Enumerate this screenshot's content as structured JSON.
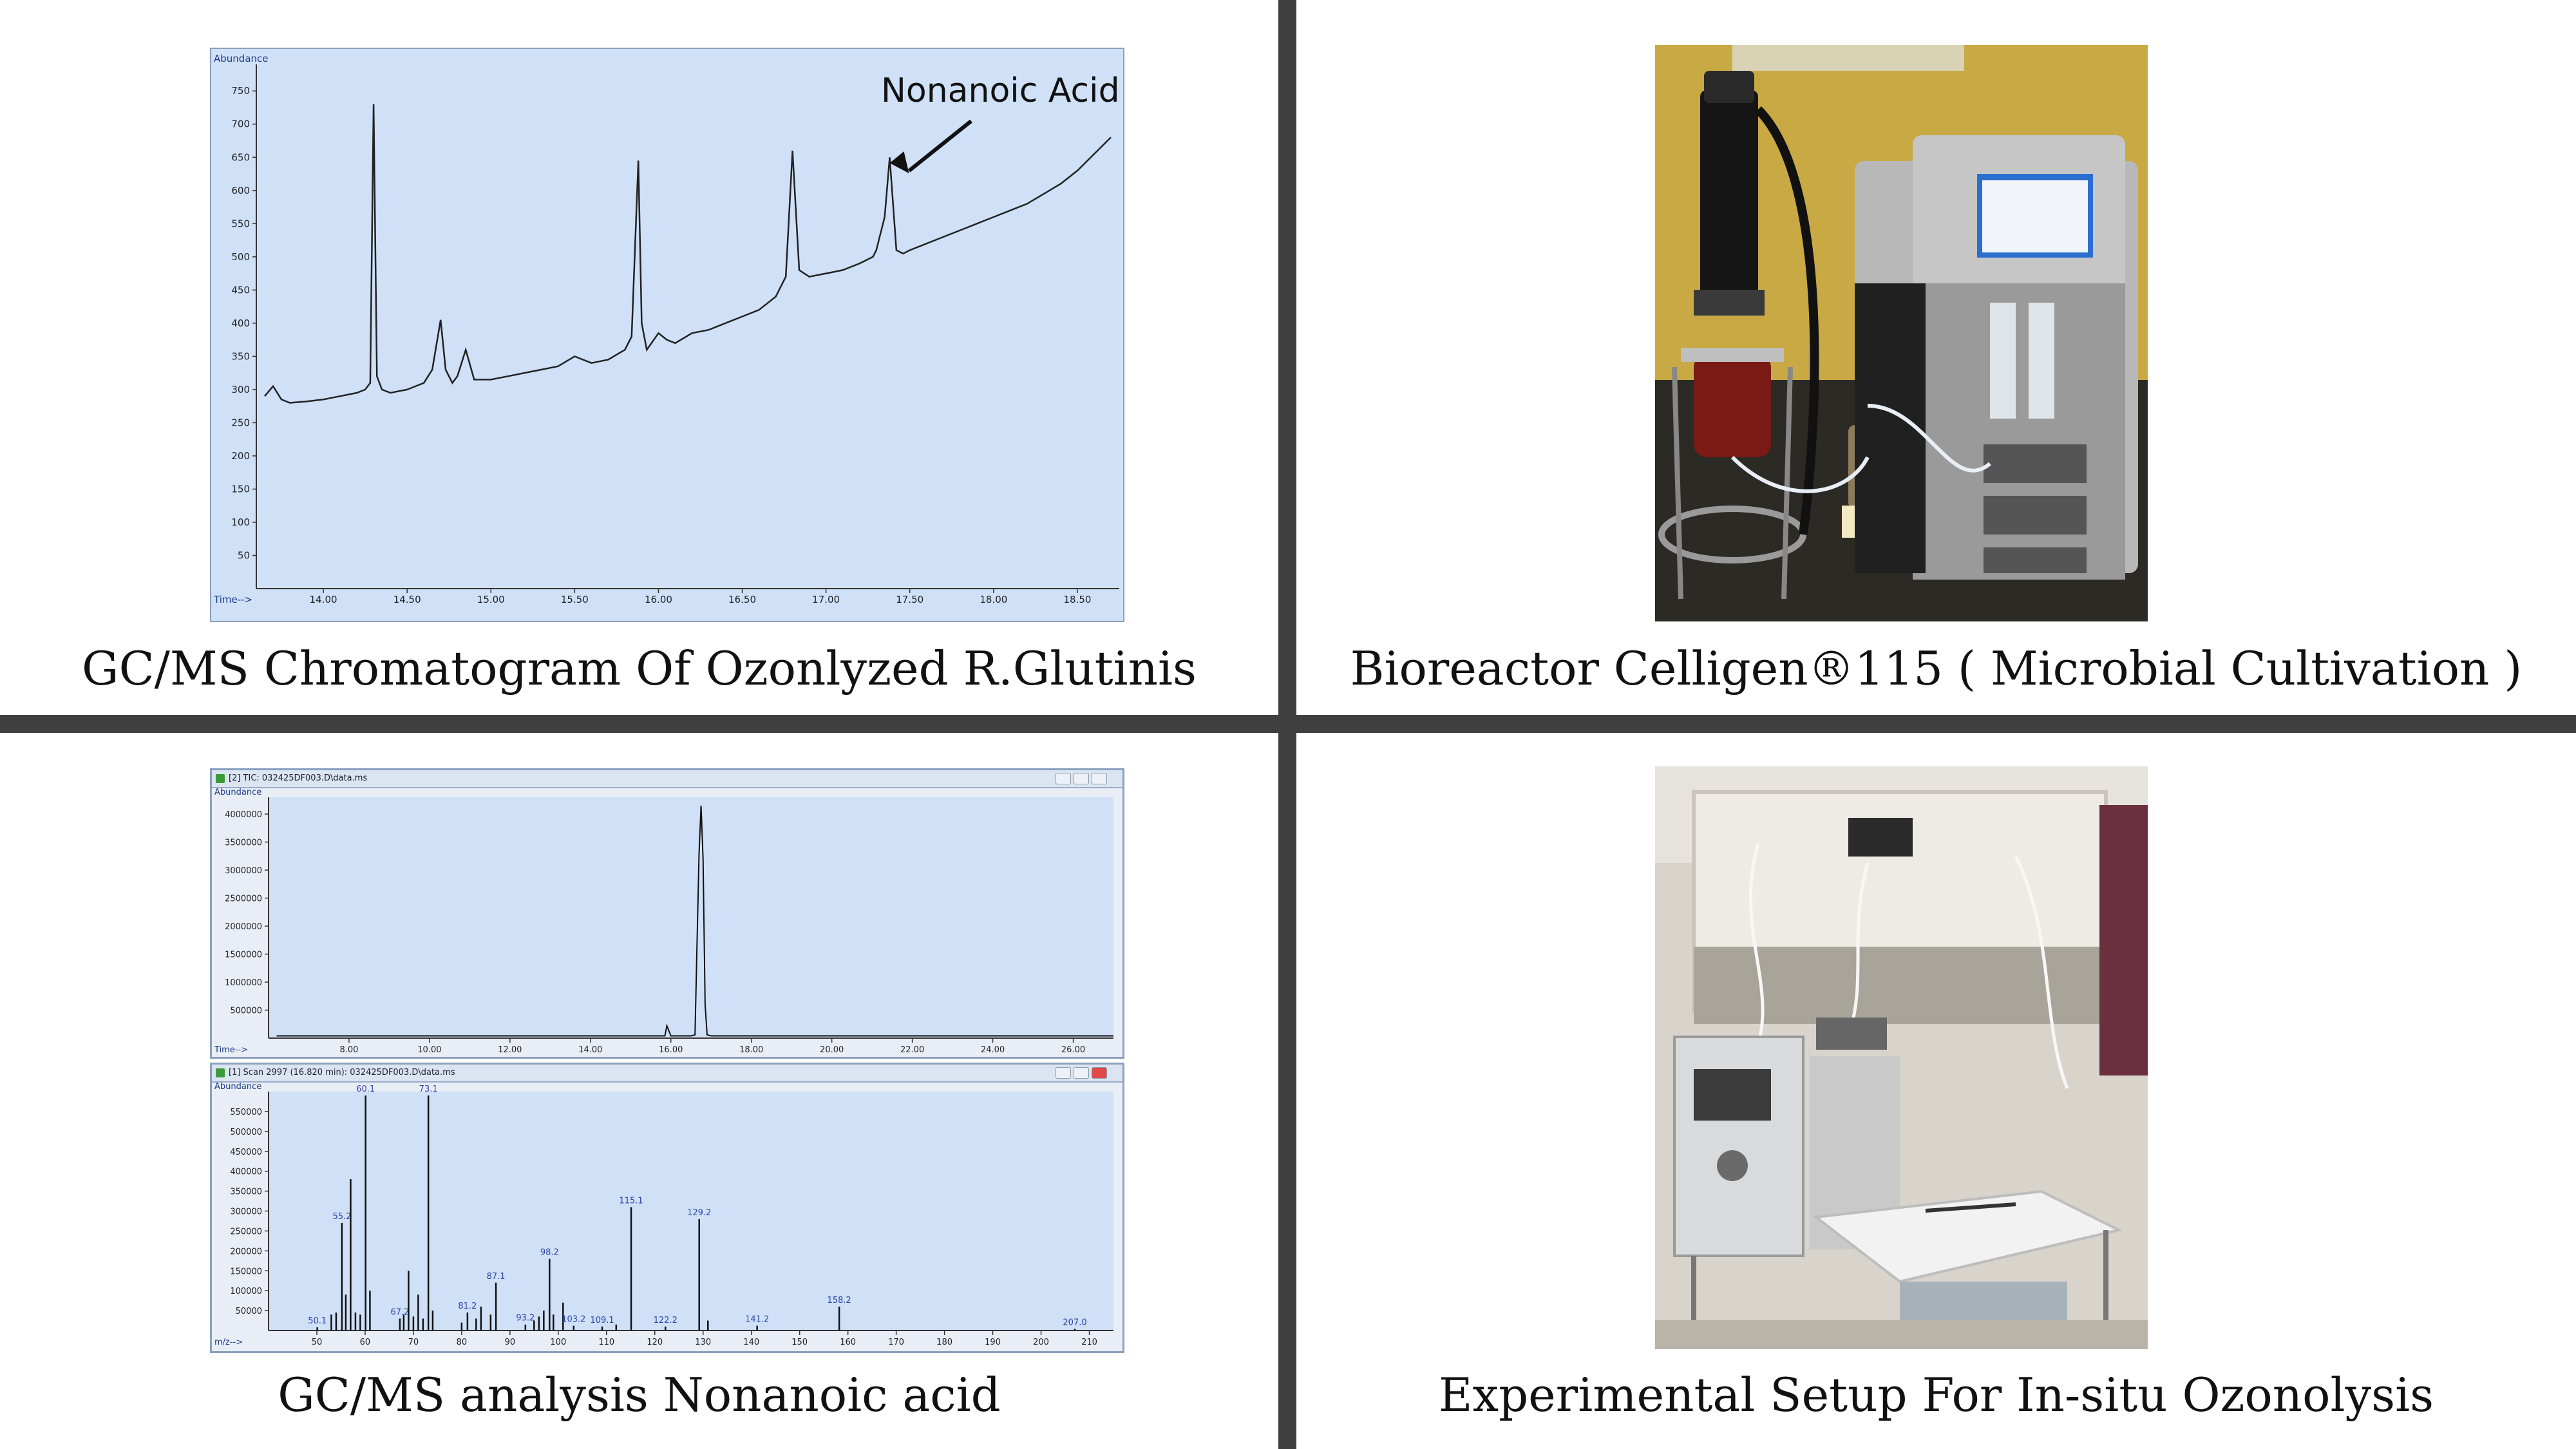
{
  "captions": {
    "top_left": "GC/MS Chromatogram Of Ozonlyzed R.Glutinis",
    "top_right": "Bioreactor Celligen®115 ( Microbial Cultivation )",
    "bottom_left": "GC/MS analysis Nonanoic acid",
    "bottom_right": "Experimental Setup For In-situ Ozonolysis"
  },
  "colors": {
    "plot_bg": "#cfe0f7",
    "trace": "#222222",
    "label_blue": "#2b45a8",
    "divider": "#3f3f3f"
  },
  "chart_data": [
    {
      "type": "line",
      "title": "",
      "ylabel": "Abundance",
      "xlabel": "Time-->",
      "xlim": [
        13.6,
        18.75
      ],
      "ylim": [
        0,
        790
      ],
      "x_ticks": [
        "14.00",
        "14.50",
        "15.00",
        "15.50",
        "16.00",
        "16.50",
        "17.00",
        "17.50",
        "18.00",
        "18.50"
      ],
      "y_ticks": [
        "50",
        "100",
        "150",
        "200",
        "250",
        "300",
        "350",
        "400",
        "450",
        "500",
        "550",
        "600",
        "650",
        "700",
        "750"
      ],
      "annotation": {
        "text": "Nonanoic Acid",
        "x": 17.38,
        "y": 620
      },
      "series": [
        {
          "x": [
            13.65,
            13.7,
            13.75,
            13.8,
            13.9,
            14.0,
            14.1,
            14.2,
            14.25,
            14.28,
            14.3,
            14.32,
            14.35,
            14.4,
            14.5,
            14.6,
            14.65,
            14.7,
            14.73,
            14.77,
            14.8,
            14.85,
            14.9,
            15.0,
            15.1,
            15.2,
            15.3,
            15.4,
            15.5,
            15.6,
            15.7,
            15.8,
            15.84,
            15.88,
            15.9,
            15.93,
            16.0,
            16.05,
            16.1,
            16.2,
            16.3,
            16.4,
            16.5,
            16.6,
            16.7,
            16.76,
            16.8,
            16.84,
            16.9,
            17.0,
            17.1,
            17.2,
            17.28,
            17.3,
            17.35,
            17.38,
            17.42,
            17.46,
            17.5,
            17.6,
            17.7,
            17.8,
            17.9,
            18.0,
            18.1,
            18.2,
            18.3,
            18.4,
            18.5,
            18.6,
            18.7
          ],
          "y": [
            290,
            305,
            285,
            280,
            282,
            285,
            290,
            295,
            300,
            310,
            730,
            320,
            300,
            295,
            300,
            310,
            330,
            405,
            330,
            310,
            320,
            360,
            315,
            315,
            320,
            325,
            330,
            335,
            350,
            340,
            345,
            360,
            380,
            645,
            400,
            360,
            385,
            375,
            370,
            385,
            390,
            400,
            410,
            420,
            440,
            470,
            660,
            480,
            470,
            475,
            480,
            490,
            500,
            510,
            560,
            650,
            510,
            505,
            510,
            520,
            530,
            540,
            550,
            560,
            570,
            580,
            595,
            610,
            630,
            655,
            680
          ]
        }
      ]
    },
    {
      "type": "line",
      "title": "[2] TIC: 032425DF003.D\\data.ms",
      "ylabel": "Abundance",
      "xlabel": "Time-->",
      "xlim": [
        6.0,
        27.0
      ],
      "ylim": [
        0,
        4300000
      ],
      "x_ticks": [
        "8.00",
        "10.00",
        "12.00",
        "14.00",
        "16.00",
        "18.00",
        "20.00",
        "22.00",
        "24.00",
        "26.00"
      ],
      "y_ticks": [
        "500000",
        "1000000",
        "1500000",
        "2000000",
        "2500000",
        "3000000",
        "3500000",
        "4000000"
      ],
      "series": [
        {
          "x": [
            6.2,
            8,
            10,
            12,
            14,
            15.5,
            15.85,
            15.9,
            16.0,
            16.5,
            16.6,
            16.7,
            16.75,
            16.8,
            16.85,
            16.9,
            17.0,
            18,
            20,
            22,
            24,
            26,
            27
          ],
          "y": [
            40000,
            40000,
            40000,
            40000,
            40000,
            40000,
            40000,
            220000,
            40000,
            40000,
            60000,
            3300000,
            4150000,
            3200000,
            600000,
            60000,
            40000,
            40000,
            40000,
            40000,
            40000,
            40000,
            40000
          ]
        }
      ]
    },
    {
      "type": "bar",
      "title": "[1] Scan 2997 (16.820 min): 032425DF003.D\\data.ms",
      "ylabel": "Abundance",
      "xlabel": "m/z-->",
      "xlim": [
        40,
        215
      ],
      "ylim": [
        0,
        600000
      ],
      "x_ticks": [
        "50",
        "60",
        "70",
        "80",
        "90",
        "100",
        "110",
        "120",
        "130",
        "140",
        "150",
        "160",
        "170",
        "180",
        "190",
        "200",
        "210"
      ],
      "y_ticks": [
        "50000",
        "100000",
        "150000",
        "200000",
        "250000",
        "300000",
        "350000",
        "400000",
        "450000",
        "500000",
        "550000"
      ],
      "peak_labels": [
        "50.1",
        "55.2",
        "60.1",
        "67.2",
        "73.1",
        "81.2",
        "87.1",
        "93.2",
        "98.2",
        "103.2",
        "109.1",
        "115.1",
        "122.2",
        "129.2",
        "141.2",
        "158.2",
        "207.0"
      ],
      "x": [
        50.1,
        53,
        54,
        55.2,
        56,
        57,
        58,
        59,
        60.1,
        61,
        67.2,
        68,
        69,
        70,
        71,
        72,
        73.1,
        74,
        80,
        81.2,
        83,
        84,
        86,
        87.1,
        93.2,
        95,
        96,
        97,
        98.2,
        99,
        101,
        103.2,
        109.1,
        112,
        115.1,
        122.2,
        129.2,
        131,
        141.2,
        158.2,
        207.0
      ],
      "values": [
        8000,
        40000,
        45000,
        270000,
        90000,
        380000,
        45000,
        40000,
        590000,
        100000,
        30000,
        40000,
        150000,
        35000,
        90000,
        30000,
        590000,
        50000,
        20000,
        45000,
        30000,
        60000,
        40000,
        120000,
        15000,
        25000,
        35000,
        50000,
        180000,
        40000,
        70000,
        12000,
        10000,
        15000,
        310000,
        10000,
        280000,
        25000,
        12000,
        60000,
        4000
      ]
    }
  ]
}
